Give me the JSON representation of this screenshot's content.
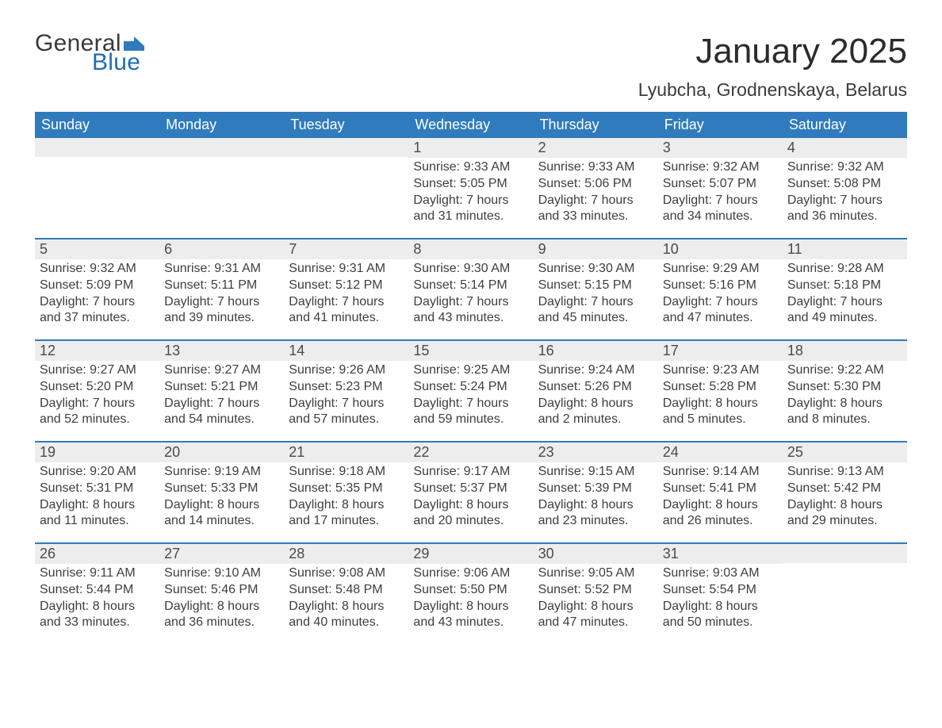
{
  "brand": {
    "word1": "General",
    "word2": "Blue",
    "word1_color": "#3a3a3a",
    "word2_color": "#1f6db3",
    "flag_color": "#2f7bbd"
  },
  "title": {
    "month_year": "January 2025",
    "location": "Lyubcha, Grodnenskaya, Belarus"
  },
  "colors": {
    "header_bg": "#2f7bbd",
    "header_text": "#ffffff",
    "daynum_bg": "#ededed",
    "rule": "#2f7bbd",
    "body_text": "#3e3e3e",
    "page_bg": "#ffffff"
  },
  "day_headers": [
    "Sunday",
    "Monday",
    "Tuesday",
    "Wednesday",
    "Thursday",
    "Friday",
    "Saturday"
  ],
  "weeks": [
    [
      {
        "n": "",
        "sunrise": "",
        "sunset": "",
        "daylight": ""
      },
      {
        "n": "",
        "sunrise": "",
        "sunset": "",
        "daylight": ""
      },
      {
        "n": "",
        "sunrise": "",
        "sunset": "",
        "daylight": ""
      },
      {
        "n": "1",
        "sunrise": "Sunrise: 9:33 AM",
        "sunset": "Sunset: 5:05 PM",
        "daylight": "Daylight: 7 hours and 31 minutes."
      },
      {
        "n": "2",
        "sunrise": "Sunrise: 9:33 AM",
        "sunset": "Sunset: 5:06 PM",
        "daylight": "Daylight: 7 hours and 33 minutes."
      },
      {
        "n": "3",
        "sunrise": "Sunrise: 9:32 AM",
        "sunset": "Sunset: 5:07 PM",
        "daylight": "Daylight: 7 hours and 34 minutes."
      },
      {
        "n": "4",
        "sunrise": "Sunrise: 9:32 AM",
        "sunset": "Sunset: 5:08 PM",
        "daylight": "Daylight: 7 hours and 36 minutes."
      }
    ],
    [
      {
        "n": "5",
        "sunrise": "Sunrise: 9:32 AM",
        "sunset": "Sunset: 5:09 PM",
        "daylight": "Daylight: 7 hours and 37 minutes."
      },
      {
        "n": "6",
        "sunrise": "Sunrise: 9:31 AM",
        "sunset": "Sunset: 5:11 PM",
        "daylight": "Daylight: 7 hours and 39 minutes."
      },
      {
        "n": "7",
        "sunrise": "Sunrise: 9:31 AM",
        "sunset": "Sunset: 5:12 PM",
        "daylight": "Daylight: 7 hours and 41 minutes."
      },
      {
        "n": "8",
        "sunrise": "Sunrise: 9:30 AM",
        "sunset": "Sunset: 5:14 PM",
        "daylight": "Daylight: 7 hours and 43 minutes."
      },
      {
        "n": "9",
        "sunrise": "Sunrise: 9:30 AM",
        "sunset": "Sunset: 5:15 PM",
        "daylight": "Daylight: 7 hours and 45 minutes."
      },
      {
        "n": "10",
        "sunrise": "Sunrise: 9:29 AM",
        "sunset": "Sunset: 5:16 PM",
        "daylight": "Daylight: 7 hours and 47 minutes."
      },
      {
        "n": "11",
        "sunrise": "Sunrise: 9:28 AM",
        "sunset": "Sunset: 5:18 PM",
        "daylight": "Daylight: 7 hours and 49 minutes."
      }
    ],
    [
      {
        "n": "12",
        "sunrise": "Sunrise: 9:27 AM",
        "sunset": "Sunset: 5:20 PM",
        "daylight": "Daylight: 7 hours and 52 minutes."
      },
      {
        "n": "13",
        "sunrise": "Sunrise: 9:27 AM",
        "sunset": "Sunset: 5:21 PM",
        "daylight": "Daylight: 7 hours and 54 minutes."
      },
      {
        "n": "14",
        "sunrise": "Sunrise: 9:26 AM",
        "sunset": "Sunset: 5:23 PM",
        "daylight": "Daylight: 7 hours and 57 minutes."
      },
      {
        "n": "15",
        "sunrise": "Sunrise: 9:25 AM",
        "sunset": "Sunset: 5:24 PM",
        "daylight": "Daylight: 7 hours and 59 minutes."
      },
      {
        "n": "16",
        "sunrise": "Sunrise: 9:24 AM",
        "sunset": "Sunset: 5:26 PM",
        "daylight": "Daylight: 8 hours and 2 minutes."
      },
      {
        "n": "17",
        "sunrise": "Sunrise: 9:23 AM",
        "sunset": "Sunset: 5:28 PM",
        "daylight": "Daylight: 8 hours and 5 minutes."
      },
      {
        "n": "18",
        "sunrise": "Sunrise: 9:22 AM",
        "sunset": "Sunset: 5:30 PM",
        "daylight": "Daylight: 8 hours and 8 minutes."
      }
    ],
    [
      {
        "n": "19",
        "sunrise": "Sunrise: 9:20 AM",
        "sunset": "Sunset: 5:31 PM",
        "daylight": "Daylight: 8 hours and 11 minutes."
      },
      {
        "n": "20",
        "sunrise": "Sunrise: 9:19 AM",
        "sunset": "Sunset: 5:33 PM",
        "daylight": "Daylight: 8 hours and 14 minutes."
      },
      {
        "n": "21",
        "sunrise": "Sunrise: 9:18 AM",
        "sunset": "Sunset: 5:35 PM",
        "daylight": "Daylight: 8 hours and 17 minutes."
      },
      {
        "n": "22",
        "sunrise": "Sunrise: 9:17 AM",
        "sunset": "Sunset: 5:37 PM",
        "daylight": "Daylight: 8 hours and 20 minutes."
      },
      {
        "n": "23",
        "sunrise": "Sunrise: 9:15 AM",
        "sunset": "Sunset: 5:39 PM",
        "daylight": "Daylight: 8 hours and 23 minutes."
      },
      {
        "n": "24",
        "sunrise": "Sunrise: 9:14 AM",
        "sunset": "Sunset: 5:41 PM",
        "daylight": "Daylight: 8 hours and 26 minutes."
      },
      {
        "n": "25",
        "sunrise": "Sunrise: 9:13 AM",
        "sunset": "Sunset: 5:42 PM",
        "daylight": "Daylight: 8 hours and 29 minutes."
      }
    ],
    [
      {
        "n": "26",
        "sunrise": "Sunrise: 9:11 AM",
        "sunset": "Sunset: 5:44 PM",
        "daylight": "Daylight: 8 hours and 33 minutes."
      },
      {
        "n": "27",
        "sunrise": "Sunrise: 9:10 AM",
        "sunset": "Sunset: 5:46 PM",
        "daylight": "Daylight: 8 hours and 36 minutes."
      },
      {
        "n": "28",
        "sunrise": "Sunrise: 9:08 AM",
        "sunset": "Sunset: 5:48 PM",
        "daylight": "Daylight: 8 hours and 40 minutes."
      },
      {
        "n": "29",
        "sunrise": "Sunrise: 9:06 AM",
        "sunset": "Sunset: 5:50 PM",
        "daylight": "Daylight: 8 hours and 43 minutes."
      },
      {
        "n": "30",
        "sunrise": "Sunrise: 9:05 AM",
        "sunset": "Sunset: 5:52 PM",
        "daylight": "Daylight: 8 hours and 47 minutes."
      },
      {
        "n": "31",
        "sunrise": "Sunrise: 9:03 AM",
        "sunset": "Sunset: 5:54 PM",
        "daylight": "Daylight: 8 hours and 50 minutes."
      },
      {
        "n": "",
        "sunrise": "",
        "sunset": "",
        "daylight": ""
      }
    ]
  ]
}
